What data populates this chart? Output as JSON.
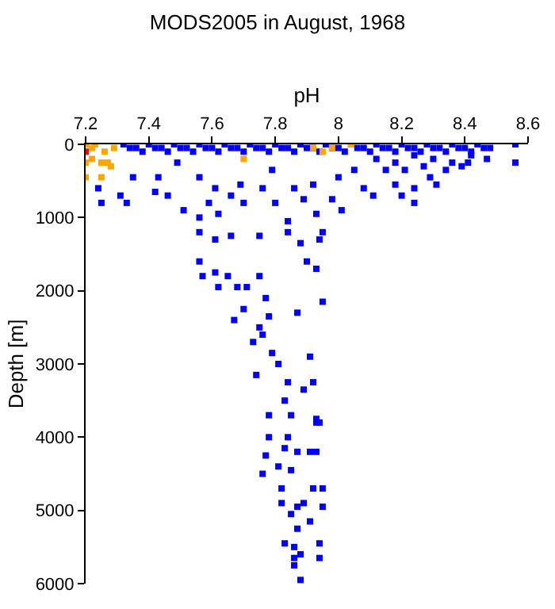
{
  "chart_data": {
    "type": "scatter",
    "title": "MODS2005 in August, 1968",
    "xlabel": "pH",
    "ylabel": "Depth [m]",
    "xlim": [
      7.2,
      8.6
    ],
    "xticks": [
      7.2,
      7.4,
      7.6,
      7.8,
      8,
      8.2,
      8.4,
      8.6
    ],
    "ylim": [
      6000,
      0
    ],
    "yticks": [
      0,
      1000,
      2000,
      3000,
      4000,
      5000,
      6000
    ],
    "marker": "square",
    "series": [
      {
        "color": "#0000ff",
        "x": [
          7.32,
          7.36,
          7.4,
          7.44,
          7.48,
          7.52,
          7.56,
          7.6,
          7.64,
          7.68,
          7.72,
          7.76,
          7.8,
          7.84,
          7.88,
          7.92,
          7.96,
          8.0,
          8.04,
          8.08,
          8.12,
          8.16,
          8.2,
          8.24,
          8.28,
          8.32,
          8.36,
          8.4,
          8.44,
          8.48,
          7.34,
          7.38,
          7.42,
          7.46,
          7.5,
          7.54,
          7.58,
          7.62,
          7.66,
          7.7,
          7.74,
          7.78,
          7.82,
          7.86,
          7.9,
          7.94,
          7.98,
          8.02,
          8.06,
          8.1,
          8.14,
          8.18,
          8.22,
          8.26,
          8.3,
          8.34,
          8.38,
          8.42,
          8.46,
          8.12,
          8.18,
          8.24,
          8.3,
          8.36,
          8.42,
          8.15,
          8.27,
          8.39,
          7.24,
          7.25,
          7.31,
          7.33,
          7.35,
          7.43,
          7.42,
          7.46,
          7.51,
          7.56,
          7.49,
          7.56,
          7.61,
          7.59,
          7.62,
          7.66,
          7.69,
          7.7,
          7.76,
          7.79,
          7.8,
          7.84,
          7.86,
          7.89,
          7.92,
          7.93,
          7.95,
          7.94,
          7.98,
          8.01,
          8.0,
          8.05,
          8.08,
          8.11,
          8.18,
          8.2,
          8.21,
          8.24,
          8.24,
          8.29,
          8.31,
          8.34,
          8.41,
          8.47,
          8.56,
          8.56,
          7.56,
          7.61,
          7.66,
          7.75,
          7.84,
          7.88,
          7.9,
          7.56,
          7.61,
          7.57,
          7.65,
          7.62,
          7.68,
          7.71,
          7.75,
          7.77,
          7.7,
          7.78,
          7.67,
          7.75,
          7.76,
          7.73,
          7.79,
          7.81,
          7.74,
          7.84,
          7.89,
          7.83,
          7.78,
          7.85,
          7.93,
          7.78,
          7.84,
          7.83,
          7.91,
          7.77,
          7.81,
          7.85,
          7.76,
          7.82,
          7.92,
          7.82,
          7.89,
          7.95,
          7.85,
          7.91,
          7.87,
          7.94,
          7.83,
          7.86,
          7.88,
          7.86,
          7.94,
          7.86,
          7.88,
          7.93,
          7.95,
          7.87,
          7.91,
          7.92,
          7.93,
          7.94,
          7.87,
          7.93,
          7.87,
          7.95
        ],
        "values": [
          0,
          50,
          0,
          50,
          0,
          50,
          0,
          50,
          0,
          50,
          0,
          50,
          0,
          50,
          0,
          50,
          0,
          50,
          0,
          50,
          0,
          50,
          0,
          50,
          0,
          50,
          0,
          50,
          0,
          50,
          50,
          100,
          50,
          100,
          50,
          100,
          50,
          100,
          50,
          100,
          50,
          100,
          50,
          100,
          50,
          100,
          50,
          100,
          50,
          100,
          50,
          100,
          50,
          100,
          50,
          100,
          50,
          100,
          50,
          200,
          250,
          150,
          200,
          250,
          150,
          350,
          300,
          300,
          600,
          800,
          700,
          800,
          450,
          450,
          650,
          700,
          900,
          1000,
          250,
          450,
          600,
          800,
          950,
          700,
          550,
          800,
          600,
          350,
          800,
          1050,
          600,
          750,
          550,
          950,
          1200,
          1300,
          750,
          900,
          450,
          350,
          600,
          700,
          550,
          700,
          350,
          600,
          800,
          450,
          550,
          350,
          250,
          200,
          0,
          250,
          1200,
          1300,
          1250,
          1250,
          1200,
          1350,
          1600,
          1600,
          1750,
          1800,
          1800,
          1950,
          1950,
          1950,
          1800,
          2100,
          2250,
          2350,
          2400,
          2500,
          2600,
          2700,
          2850,
          3000,
          3150,
          3250,
          3350,
          3500,
          3700,
          3700,
          3800,
          4000,
          4000,
          4150,
          4200,
          4250,
          4400,
          4450,
          4500,
          4700,
          4700,
          4900,
          4900,
          4950,
          5050,
          5150,
          5250,
          5450,
          5450,
          5500,
          5600,
          5650,
          5650,
          5750,
          5950,
          1700,
          2150,
          2300,
          2900,
          3250,
          3750,
          3800,
          4200,
          4200,
          4950,
          4700
        ]
      },
      {
        "color": "#ffa500",
        "x": [
          7.2,
          7.22,
          7.23,
          7.26,
          7.29,
          7.2,
          7.22,
          7.25,
          7.27,
          7.28,
          7.25,
          7.2,
          7.92,
          7.98,
          8.04,
          7.7,
          7.95
        ],
        "values": [
          0,
          50,
          0,
          100,
          50,
          250,
          200,
          250,
          250,
          300,
          450,
          450,
          50,
          50,
          0,
          200,
          100
        ]
      },
      {
        "color": "#ff0000",
        "x": [
          7.2
        ],
        "values": [
          100
        ]
      }
    ]
  }
}
